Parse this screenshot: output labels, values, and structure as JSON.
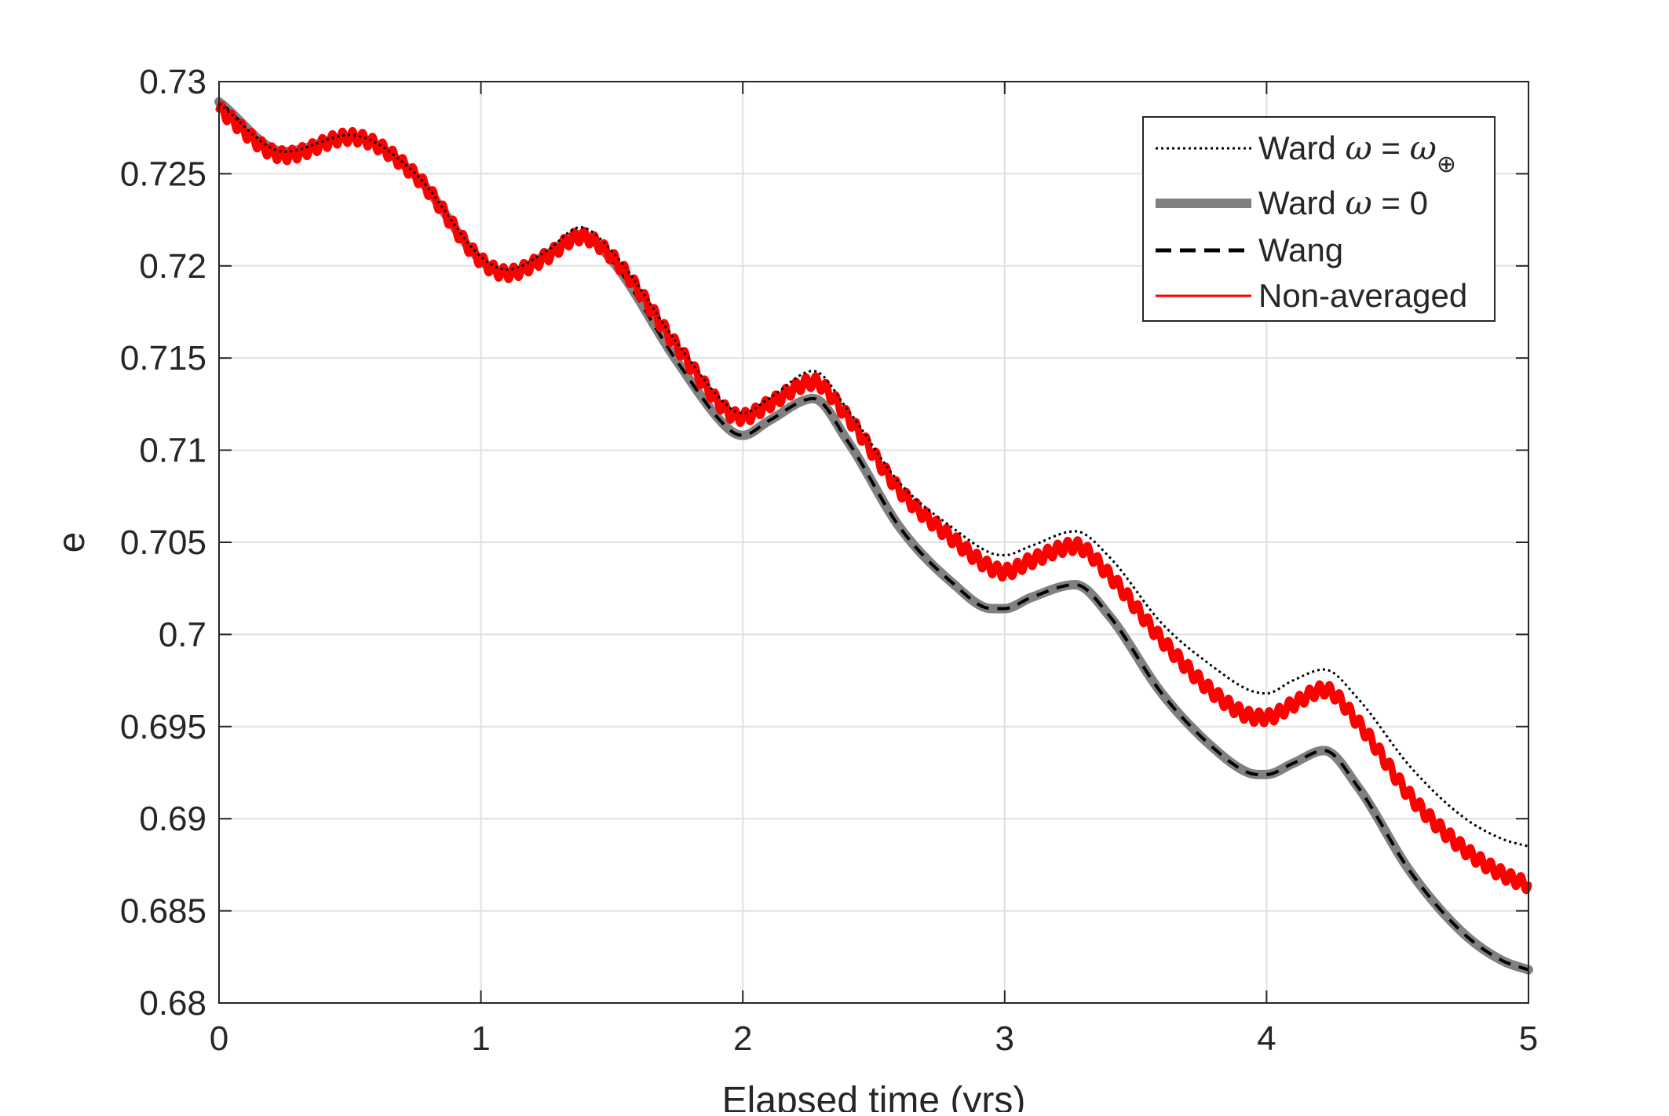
{
  "chart_data": {
    "type": "line",
    "xlabel": "Elapsed time (yrs)",
    "ylabel": "e",
    "xlim": [
      0,
      5
    ],
    "ylim": [
      0.68,
      0.73
    ],
    "xticks": [
      0,
      1,
      2,
      3,
      4,
      5
    ],
    "xtick_labels": [
      "0",
      "1",
      "2",
      "3",
      "4",
      "5"
    ],
    "yticks": [
      0.68,
      0.685,
      0.69,
      0.695,
      0.7,
      0.705,
      0.71,
      0.715,
      0.72,
      0.725,
      0.73
    ],
    "ytick_labels": [
      "0.68",
      "0.685",
      "0.69",
      "0.695",
      "0.7",
      "0.705",
      "0.71",
      "0.715",
      "0.72",
      "0.725",
      "0.73"
    ],
    "grid": true,
    "legend_position": "top-right",
    "colors": {
      "ward_earth": "#000000",
      "ward_zero": "#808080",
      "wang": "#000000",
      "non_averaged": "#ff0000",
      "grid": "#e0e0e0",
      "axes": "#262626"
    },
    "series": [
      {
        "id": "ward_earth",
        "name_prefix": "Ward ",
        "name_symbol": "ω",
        "name_mid": " = ",
        "name_sub": "⊕",
        "style": "dotted",
        "x": [
          0,
          0.25,
          0.5,
          0.75,
          1.0,
          1.1,
          1.25,
          1.38,
          1.5,
          1.75,
          1.95,
          2.0,
          2.1,
          2.27,
          2.4,
          2.6,
          2.8,
          2.95,
          3.0,
          3.1,
          3.27,
          3.4,
          3.6,
          3.8,
          3.93,
          4.0,
          4.1,
          4.22,
          4.35,
          4.55,
          4.75,
          4.9,
          5.0
        ],
        "y": [
          0.7288,
          0.7262,
          0.7271,
          0.725,
          0.7205,
          0.7198,
          0.7208,
          0.7221,
          0.7208,
          0.7158,
          0.7123,
          0.712,
          0.7128,
          0.7143,
          0.7122,
          0.7082,
          0.7058,
          0.7044,
          0.7043,
          0.7048,
          0.7056,
          0.7042,
          0.7006,
          0.6982,
          0.697,
          0.6968,
          0.6975,
          0.6981,
          0.6965,
          0.6928,
          0.6901,
          0.6889,
          0.6885
        ]
      },
      {
        "id": "ward_zero",
        "name_prefix": "Ward ",
        "name_symbol": "ω",
        "name_mid": " = 0",
        "style": "solid-thick",
        "x": [
          0,
          0.25,
          0.5,
          0.75,
          1.0,
          1.1,
          1.25,
          1.38,
          1.5,
          1.75,
          1.95,
          2.0,
          2.1,
          2.27,
          2.4,
          2.6,
          2.8,
          2.95,
          3.0,
          3.1,
          3.27,
          3.4,
          3.6,
          3.8,
          3.93,
          4.0,
          4.1,
          4.22,
          4.35,
          4.55,
          4.75,
          4.9,
          5.0
        ],
        "y": [
          0.7289,
          0.7262,
          0.727,
          0.7249,
          0.7203,
          0.7196,
          0.7206,
          0.7217,
          0.7203,
          0.7148,
          0.7111,
          0.7108,
          0.7116,
          0.7128,
          0.7105,
          0.7058,
          0.7028,
          0.7014,
          0.7014,
          0.702,
          0.7027,
          0.701,
          0.6968,
          0.6938,
          0.6925,
          0.6924,
          0.693,
          0.6937,
          0.6917,
          0.6871,
          0.6838,
          0.6823,
          0.6818
        ]
      },
      {
        "id": "wang",
        "name": "Wang",
        "style": "dashed",
        "x": [
          0,
          0.25,
          0.5,
          0.75,
          1.0,
          1.1,
          1.25,
          1.38,
          1.5,
          1.75,
          1.95,
          2.0,
          2.1,
          2.27,
          2.4,
          2.6,
          2.8,
          2.95,
          3.0,
          3.1,
          3.27,
          3.4,
          3.6,
          3.8,
          3.93,
          4.0,
          4.1,
          4.22,
          4.35,
          4.55,
          4.75,
          4.9,
          5.0
        ],
        "y": [
          0.7289,
          0.7262,
          0.727,
          0.7249,
          0.7203,
          0.7196,
          0.7206,
          0.7217,
          0.7203,
          0.7148,
          0.7111,
          0.7108,
          0.7116,
          0.7128,
          0.7105,
          0.7058,
          0.7028,
          0.7014,
          0.7014,
          0.702,
          0.7027,
          0.701,
          0.6968,
          0.6938,
          0.6925,
          0.6924,
          0.693,
          0.6937,
          0.6917,
          0.6871,
          0.6838,
          0.6823,
          0.6818
        ]
      },
      {
        "id": "non_averaged",
        "name": "Non-averaged",
        "style": "solid-oscillating",
        "x": [
          0,
          0.25,
          0.5,
          0.75,
          1.0,
          1.1,
          1.25,
          1.38,
          1.5,
          1.75,
          1.95,
          2.0,
          2.1,
          2.27,
          2.4,
          2.6,
          2.8,
          2.95,
          3.0,
          3.1,
          3.27,
          3.4,
          3.6,
          3.8,
          3.93,
          4.0,
          4.1,
          4.22,
          4.35,
          4.55,
          4.75,
          4.9,
          5.0
        ],
        "y": [
          0.7285,
          0.726,
          0.727,
          0.7249,
          0.7203,
          0.7196,
          0.7205,
          0.7216,
          0.7205,
          0.7156,
          0.712,
          0.7118,
          0.7125,
          0.7137,
          0.7118,
          0.7078,
          0.7052,
          0.7036,
          0.7034,
          0.704,
          0.7048,
          0.7032,
          0.6997,
          0.6968,
          0.6956,
          0.6955,
          0.6962,
          0.697,
          0.6952,
          0.6912,
          0.6884,
          0.687,
          0.6864
        ]
      }
    ]
  }
}
